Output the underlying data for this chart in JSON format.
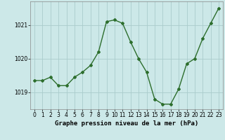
{
  "x": [
    0,
    1,
    2,
    3,
    4,
    5,
    6,
    7,
    8,
    9,
    10,
    11,
    12,
    13,
    14,
    15,
    16,
    17,
    18,
    19,
    20,
    21,
    22,
    23
  ],
  "y": [
    1019.35,
    1019.35,
    1019.45,
    1019.2,
    1019.2,
    1019.45,
    1019.6,
    1019.8,
    1020.2,
    1021.1,
    1021.15,
    1021.05,
    1020.5,
    1020.0,
    1019.6,
    1018.8,
    1018.65,
    1018.65,
    1019.1,
    1019.85,
    1020.0,
    1020.6,
    1021.05,
    1021.5
  ],
  "line_color": "#2d6e2d",
  "marker": "D",
  "marker_size": 2.0,
  "background_color": "#cce8e8",
  "grid_color": "#aacccc",
  "xlabel": "Graphe pression niveau de la mer (hPa)",
  "ylim": [
    1018.5,
    1021.7
  ],
  "xlim": [
    -0.5,
    23.5
  ],
  "yticks": [
    1019,
    1020,
    1021
  ],
  "xticks": [
    0,
    1,
    2,
    3,
    4,
    5,
    6,
    7,
    8,
    9,
    10,
    11,
    12,
    13,
    14,
    15,
    16,
    17,
    18,
    19,
    20,
    21,
    22,
    23
  ],
  "xlabel_fontsize": 6.5,
  "tick_fontsize": 5.5,
  "line_width": 1.0
}
